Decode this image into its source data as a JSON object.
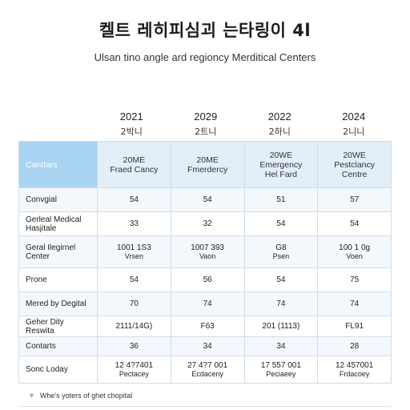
{
  "title": "켈트 레히피심괴 는타링이 4l",
  "subtitle": "Ulsan tino angle ard regioncy Merditical Centers",
  "years": [
    {
      "year": "2021",
      "sub": "2박니"
    },
    {
      "year": "2029",
      "sub": "2트니"
    },
    {
      "year": "2022",
      "sub": "2하니"
    },
    {
      "year": "2024",
      "sub": "2니니"
    }
  ],
  "table": {
    "corner": "Cantfars",
    "headers": [
      [
        "20ME",
        "Fraed Cancy"
      ],
      [
        "20ME",
        "Fmerdercy"
      ],
      [
        "20WE",
        "Emergency",
        "Hel Fard"
      ],
      [
        "20WE",
        "Pestclancy",
        "Centre"
      ]
    ],
    "rows": [
      {
        "label": [
          "Convgial"
        ],
        "cells": [
          [
            "54"
          ],
          [
            "54"
          ],
          [
            "51"
          ],
          [
            "57"
          ]
        ]
      },
      {
        "label": [
          "Gerleal Medical",
          "Hasjitale"
        ],
        "cells": [
          [
            "33"
          ],
          [
            "32"
          ],
          [
            "54"
          ],
          [
            "54"
          ]
        ]
      },
      {
        "label": [
          "Geral Ilegirnel",
          "Center"
        ],
        "cells": [
          [
            "1001 1S3",
            "Vrsen"
          ],
          [
            "1007 393",
            "Vaon"
          ],
          [
            "G8",
            "Psen"
          ],
          [
            "100 1 0g",
            "Voen"
          ]
        ]
      },
      {
        "label": [
          "Prone"
        ],
        "cells": [
          [
            "54"
          ],
          [
            "56"
          ],
          [
            "54"
          ],
          [
            "75"
          ]
        ]
      },
      {
        "label": [
          "Mered by Degital"
        ],
        "cells": [
          [
            "70"
          ],
          [
            "74"
          ],
          [
            "74"
          ],
          [
            "74"
          ]
        ]
      },
      {
        "label": [
          "Geher Dity Reswita"
        ],
        "cells": [
          [
            "2111/14G)"
          ],
          [
            "F63"
          ],
          [
            "201 (1113)"
          ],
          [
            "FL91"
          ]
        ]
      },
      {
        "label": [
          "Contarts"
        ],
        "cells": [
          [
            "36"
          ],
          [
            "34"
          ],
          [
            "34"
          ],
          [
            "28"
          ]
        ]
      },
      {
        "label": [
          "Sonc Loday"
        ],
        "cells": [
          [
            "12 4?7401",
            "Pectacey"
          ],
          [
            "27 4?7 001",
            "Ecdaceny"
          ],
          [
            "17 557 001",
            "Peciaeey"
          ],
          [
            "12 457001",
            "Frdacoey"
          ]
        ]
      }
    ]
  },
  "footer": "Whe's yoters of ghet chopital",
  "footer_icon": "chevron-down-icon"
}
